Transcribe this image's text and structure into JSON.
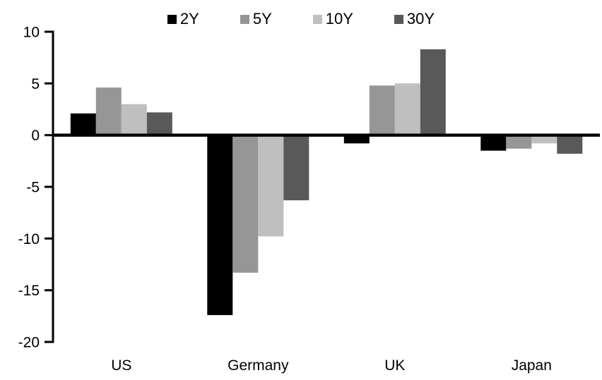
{
  "chart_data": {
    "type": "bar",
    "title": "",
    "xlabel": "",
    "ylabel": "",
    "categories": [
      "US",
      "Germany",
      "UK",
      "Japan"
    ],
    "series": [
      {
        "name": "2Y",
        "color": "#000000",
        "values": [
          2.1,
          -17.4,
          -0.8,
          -1.5
        ]
      },
      {
        "name": "5Y",
        "color": "#969696",
        "values": [
          4.6,
          -13.3,
          4.8,
          -1.3
        ]
      },
      {
        "name": "10Y",
        "color": "#BFBFBF",
        "values": [
          3.0,
          -9.8,
          5.0,
          -0.8
        ]
      },
      {
        "name": "30Y",
        "color": "#595959",
        "values": [
          2.2,
          -6.3,
          8.3,
          -1.8
        ]
      }
    ],
    "ylim": [
      -20,
      10
    ],
    "yticks": [
      10,
      5,
      0,
      -5,
      -10,
      -15,
      -20
    ],
    "grid": false,
    "legend_position": "top",
    "axis_color": "#000000",
    "background_color": "#FFFFFF"
  }
}
